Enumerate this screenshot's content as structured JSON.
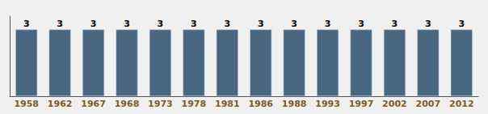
{
  "chart_data": {
    "type": "bar",
    "categories": [
      "1958",
      "1962",
      "1967",
      "1968",
      "1973",
      "1978",
      "1981",
      "1986",
      "1988",
      "1993",
      "1997",
      "2002",
      "2007",
      "2012"
    ],
    "values": [
      3,
      3,
      3,
      3,
      3,
      3,
      3,
      3,
      3,
      3,
      3,
      3,
      3,
      3
    ],
    "color": "#4a6781",
    "ylim": [
      0,
      3.6
    ],
    "grid": false,
    "data_labels": true,
    "tick_labels": "x"
  }
}
